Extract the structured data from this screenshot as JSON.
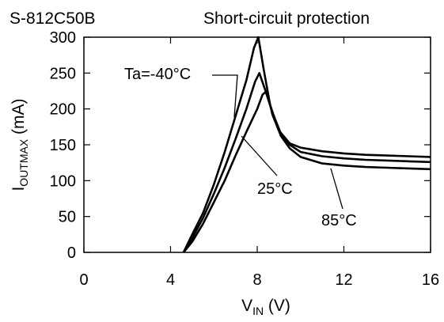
{
  "chart_data": {
    "type": "line",
    "title": "S-812C50B",
    "subtitle": "Short-circuit protection",
    "ylabel": {
      "main": "I",
      "sub": "OUTMAX",
      "unit": " (mA)"
    },
    "xlabel": {
      "main": "V",
      "sub": "IN",
      "unit": " (V)"
    },
    "xlim": [
      0,
      16
    ],
    "ylim": [
      0,
      300
    ],
    "xticks": [
      0,
      4,
      8,
      12,
      16
    ],
    "yticks": [
      0,
      50,
      100,
      150,
      200,
      250,
      300
    ],
    "grid": false,
    "series": [
      {
        "name": "Ta=-40°C",
        "points": [
          [
            4.6,
            0
          ],
          [
            5.0,
            25
          ],
          [
            5.5,
            55
          ],
          [
            6.0,
            95
          ],
          [
            6.5,
            140
          ],
          [
            7.0,
            190
          ],
          [
            7.5,
            240
          ],
          [
            7.85,
            285
          ],
          [
            8.05,
            300
          ],
          [
            8.3,
            255
          ],
          [
            8.6,
            205
          ],
          [
            9.0,
            170
          ],
          [
            9.5,
            152
          ],
          [
            10.0,
            146
          ],
          [
            11.0,
            141
          ],
          [
            12.0,
            138
          ],
          [
            13.0,
            136
          ],
          [
            14.0,
            135
          ],
          [
            15.0,
            134
          ],
          [
            16.0,
            133
          ]
        ]
      },
      {
        "name": "25°C",
        "points": [
          [
            4.6,
            0
          ],
          [
            5.0,
            20
          ],
          [
            5.5,
            48
          ],
          [
            6.0,
            82
          ],
          [
            6.5,
            118
          ],
          [
            7.0,
            158
          ],
          [
            7.5,
            200
          ],
          [
            7.9,
            238
          ],
          [
            8.1,
            250
          ],
          [
            8.35,
            228
          ],
          [
            8.7,
            195
          ],
          [
            9.1,
            165
          ],
          [
            9.5,
            150
          ],
          [
            10.0,
            140
          ],
          [
            11.0,
            134
          ],
          [
            12.0,
            131
          ],
          [
            13.0,
            129
          ],
          [
            14.0,
            128
          ],
          [
            15.0,
            127
          ],
          [
            16.0,
            126
          ]
        ]
      },
      {
        "name": "85°C",
        "points": [
          [
            4.6,
            0
          ],
          [
            5.0,
            15
          ],
          [
            5.5,
            40
          ],
          [
            6.0,
            70
          ],
          [
            6.5,
            100
          ],
          [
            7.0,
            135
          ],
          [
            7.5,
            168
          ],
          [
            8.0,
            200
          ],
          [
            8.25,
            220
          ],
          [
            8.45,
            225
          ],
          [
            8.7,
            192
          ],
          [
            9.1,
            162
          ],
          [
            9.5,
            145
          ],
          [
            10.0,
            133
          ],
          [
            11.0,
            124
          ],
          [
            12.0,
            121
          ],
          [
            13.0,
            119
          ],
          [
            14.0,
            118
          ],
          [
            15.0,
            117
          ],
          [
            16.0,
            116
          ]
        ]
      }
    ],
    "annotations": [
      {
        "text": "Ta=-40°C",
        "series": 0
      },
      {
        "text": "25°C",
        "series": 1
      },
      {
        "text": "85°C",
        "series": 2
      }
    ]
  }
}
